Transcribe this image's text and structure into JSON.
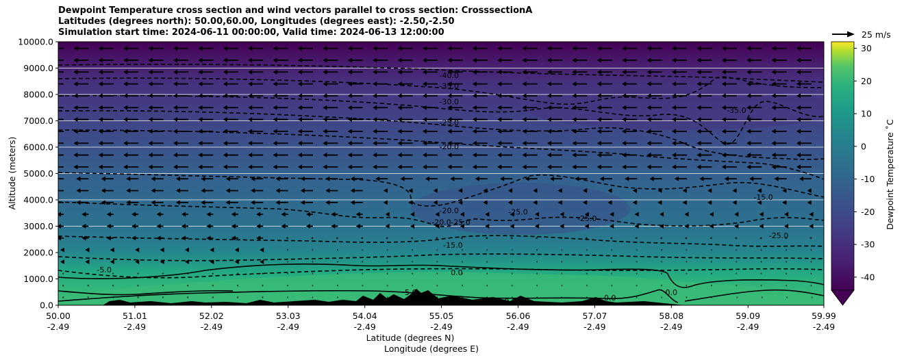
{
  "chart_data": {
    "type": "heatmap",
    "title_lines": [
      "Dewpoint Temperature cross section and wind vectors parallel to cross section: CrosssectionA",
      "Latitudes (degrees north): 50.00,60.00, Longitudes (degrees east): -2.50,-2.50",
      "Simulation start time: 2024-06-11 00:00:00, Valid time: 2024-06-13 12:00:00"
    ],
    "ylabel": "Altitude (meters)",
    "xlabel_lat": "Latitude (degrees N)",
    "xlabel_lon": "Longitude (degrees E)",
    "ylim": [
      0,
      10000
    ],
    "yticks": [
      "0.0",
      "1000.0",
      "2000.0",
      "3000.0",
      "4000.0",
      "5000.0",
      "6000.0",
      "7000.0",
      "8000.0",
      "9000.0",
      "10000.0"
    ],
    "x_positions": [
      0,
      1,
      2,
      3,
      4,
      5,
      6,
      7,
      8,
      9,
      9.99
    ],
    "xtick_lat": [
      "50.00",
      "51.01",
      "52.02",
      "53.03",
      "54.04",
      "55.05",
      "56.06",
      "57.07",
      "58.08",
      "59.09",
      "59.99"
    ],
    "xtick_lon": [
      "-2.49",
      "-2.49",
      "-2.49",
      "-2.49",
      "-2.49",
      "-2.49",
      "-2.49",
      "-2.49",
      "-2.49",
      "-2.49",
      "-2.49"
    ],
    "gridlines_y": [
      3000,
      4000,
      5000,
      6000,
      7000,
      8000,
      9000
    ],
    "colorbar": {
      "label": "Dewpoint Temperature $^\\circ$C",
      "label_display": "Dewpoint Temperature ˚C",
      "min": -44,
      "max": 32,
      "ticks": [
        "-40",
        "-30",
        "-20",
        "-10",
        "0",
        "10",
        "20",
        "30"
      ],
      "tick_values": [
        -40,
        -30,
        -20,
        -10,
        0,
        10,
        20,
        30
      ],
      "extend": "min",
      "colormap": "viridis"
    },
    "wind_reference": {
      "label": "25 m/s",
      "speed": 25
    },
    "dewpoint_profile": [
      {
        "altitude": 0,
        "value": 14
      },
      {
        "altitude": 1000,
        "value": 8
      },
      {
        "altitude": 2000,
        "value": -6
      },
      {
        "altitude": 3000,
        "value": -14
      },
      {
        "altitude": 4000,
        "value": -18
      },
      {
        "altitude": 5000,
        "value": -16
      },
      {
        "altitude": 6000,
        "value": -20
      },
      {
        "altitude": 7000,
        "value": -25
      },
      {
        "altitude": 8000,
        "value": -32
      },
      {
        "altitude": 9000,
        "value": -40
      },
      {
        "altitude": 10000,
        "value": -43
      }
    ],
    "contour_labels": [
      {
        "text": "-40.0",
        "x": 5.1,
        "y": 8730
      },
      {
        "text": "-35.0",
        "x": 5.1,
        "y": 8330
      },
      {
        "text": "-30.0",
        "x": 5.1,
        "y": 7730
      },
      {
        "text": "-25.0",
        "x": 5.1,
        "y": 6930
      },
      {
        "text": "-20.0",
        "x": 5.1,
        "y": 6030
      },
      {
        "text": "-20.0",
        "x": 5.1,
        "y": 3600
      },
      {
        "text": "-25.0",
        "x": 5.25,
        "y": 3150
      },
      {
        "text": "-20.0",
        "x": 5.0,
        "y": 3150
      },
      {
        "text": "-15.0",
        "x": 5.15,
        "y": 2280
      },
      {
        "text": "-25.0",
        "x": 6.0,
        "y": 3550
      },
      {
        "text": "-25.0",
        "x": 6.9,
        "y": 3300
      },
      {
        "text": "-15.0",
        "x": 9.2,
        "y": 4100
      },
      {
        "text": "-25.0",
        "x": 9.4,
        "y": 2650
      },
      {
        "text": "-35.0",
        "x": 8.85,
        "y": 7400
      },
      {
        "text": "-5.0",
        "x": 0.6,
        "y": 1350
      },
      {
        "text": "0.0",
        "x": 5.2,
        "y": 1250
      },
      {
        "text": "5.0",
        "x": 4.6,
        "y": 500
      },
      {
        "text": "0.0",
        "x": 5.9,
        "y": 150
      },
      {
        "text": "0.0",
        "x": 7.2,
        "y": 280
      },
      {
        "text": "0.0",
        "x": 8.0,
        "y": 500
      }
    ]
  }
}
